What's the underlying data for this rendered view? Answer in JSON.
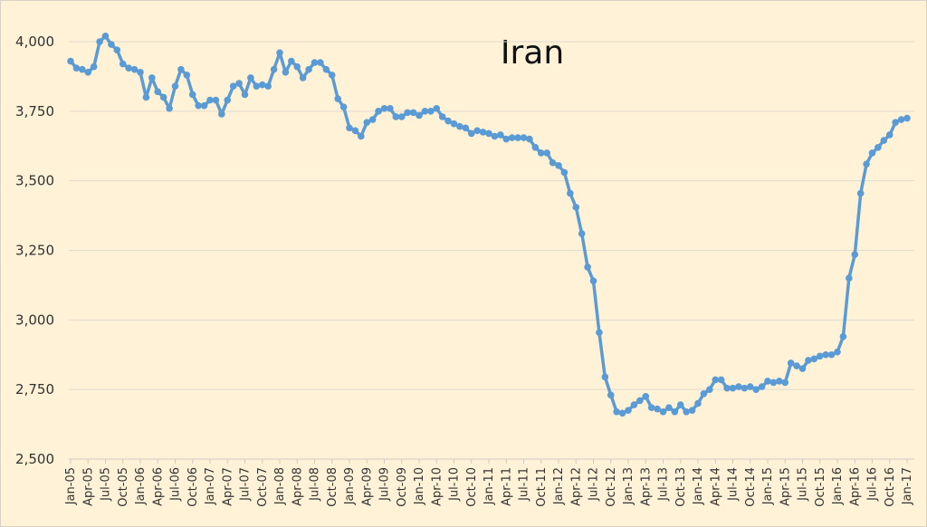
{
  "chart_data": {
    "type": "line",
    "title": "Iran",
    "xlabel": "",
    "ylabel": "",
    "ylim": [
      2500,
      4000
    ],
    "yticks": [
      2500,
      2750,
      3000,
      3250,
      3500,
      3750,
      4000
    ],
    "ytick_labels": [
      "2,500",
      "2,750",
      "3,000",
      "3,250",
      "3,500",
      "3,750",
      "4,000"
    ],
    "grid": true,
    "legend": null,
    "line_color": "#5b9bd5",
    "background_color": "#fff2d6",
    "x_start": "Jan-05",
    "x_end": "Jan-17",
    "frequency": "monthly",
    "xtick_labels": [
      "Jan-05",
      "Apr-05",
      "Jul-05",
      "Oct-05",
      "Jan-06",
      "Apr-06",
      "Jul-06",
      "Oct-06",
      "Jan-07",
      "Apr-07",
      "Jul-07",
      "Oct-07",
      "Jan-08",
      "Apr-08",
      "Jul-08",
      "Oct-08",
      "Jan-09",
      "Apr-09",
      "Jul-09",
      "Oct-09",
      "Jan-10",
      "Apr-10",
      "Jul-10",
      "Oct-10",
      "Jan-11",
      "Apr-11",
      "Jul-11",
      "Oct-11",
      "Jan-12",
      "Apr-12",
      "Jul-12",
      "Oct-12",
      "Jan-13",
      "Apr-13",
      "Jul-13",
      "Oct-13",
      "Jan-14",
      "Apr-14",
      "Jul-14",
      "Oct-14",
      "Jan-15",
      "Apr-15",
      "Jul-15",
      "Oct-15",
      "Jan-16",
      "Apr-16",
      "Jul-16",
      "Oct-16",
      "Jan-17"
    ],
    "series": [
      {
        "name": "Iran",
        "values": [
          3930,
          3905,
          3900,
          3890,
          3910,
          4000,
          4020,
          3990,
          3970,
          3920,
          3905,
          3900,
          3890,
          3800,
          3870,
          3820,
          3800,
          3760,
          3840,
          3900,
          3880,
          3810,
          3770,
          3770,
          3790,
          3790,
          3740,
          3790,
          3840,
          3850,
          3810,
          3870,
          3840,
          3845,
          3840,
          3900,
          3960,
          3890,
          3930,
          3910,
          3870,
          3900,
          3925,
          3925,
          3900,
          3880,
          3795,
          3765,
          3690,
          3680,
          3660,
          3710,
          3720,
          3750,
          3760,
          3760,
          3730,
          3730,
          3745,
          3745,
          3735,
          3750,
          3750,
          3760,
          3730,
          3715,
          3705,
          3695,
          3690,
          3670,
          3680,
          3675,
          3670,
          3660,
          3665,
          3650,
          3655,
          3655,
          3655,
          3650,
          3620,
          3600,
          3600,
          3565,
          3555,
          3530,
          3455,
          3405,
          3310,
          3190,
          3140,
          2955,
          2795,
          2730,
          2670,
          2665,
          2675,
          2695,
          2710,
          2725,
          2685,
          2680,
          2670,
          2685,
          2670,
          2695,
          2670,
          2675,
          2700,
          2735,
          2750,
          2785,
          2785,
          2755,
          2755,
          2760,
          2755,
          2760,
          2750,
          2760,
          2780,
          2775,
          2780,
          2775,
          2845,
          2835,
          2825,
          2855,
          2860,
          2870,
          2875,
          2875,
          2885,
          2940,
          3150,
          3235,
          3455,
          3560,
          3600,
          3620,
          3645,
          3665,
          3710,
          3720,
          3725
        ]
      }
    ]
  }
}
